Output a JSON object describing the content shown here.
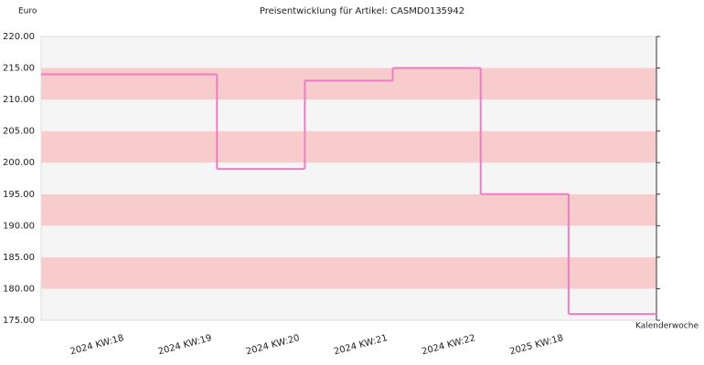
{
  "chart_data": {
    "type": "step",
    "title": "Preisentwicklung für Artikel: CASMD0135942",
    "y_label": "Euro",
    "x_label": "Kalenderwoche",
    "categories": [
      "2024 KW:18",
      "2024 KW:19",
      "2024 KW:20",
      "2024 KW:21",
      "2024 KW:22",
      "2025 KW:18"
    ],
    "values": [
      214,
      199,
      213,
      215,
      195,
      176
    ],
    "color": "#f07cc4",
    "band_colors": [
      "#f5f5f5",
      "#f8cccc"
    ],
    "ylim": [
      175,
      220
    ],
    "yticks": [
      {
        "value": 175,
        "label": "175.00"
      },
      {
        "value": 180,
        "label": "180.00"
      },
      {
        "value": 185,
        "label": "185.00"
      },
      {
        "value": 190,
        "label": "190.00"
      },
      {
        "value": 195,
        "label": "195.00"
      },
      {
        "value": 200,
        "label": "200.00"
      },
      {
        "value": 205,
        "label": "205.00"
      },
      {
        "value": 210,
        "label": "210.00"
      },
      {
        "value": 215,
        "label": "215.00"
      },
      {
        "value": 220,
        "label": "220.00"
      }
    ]
  }
}
